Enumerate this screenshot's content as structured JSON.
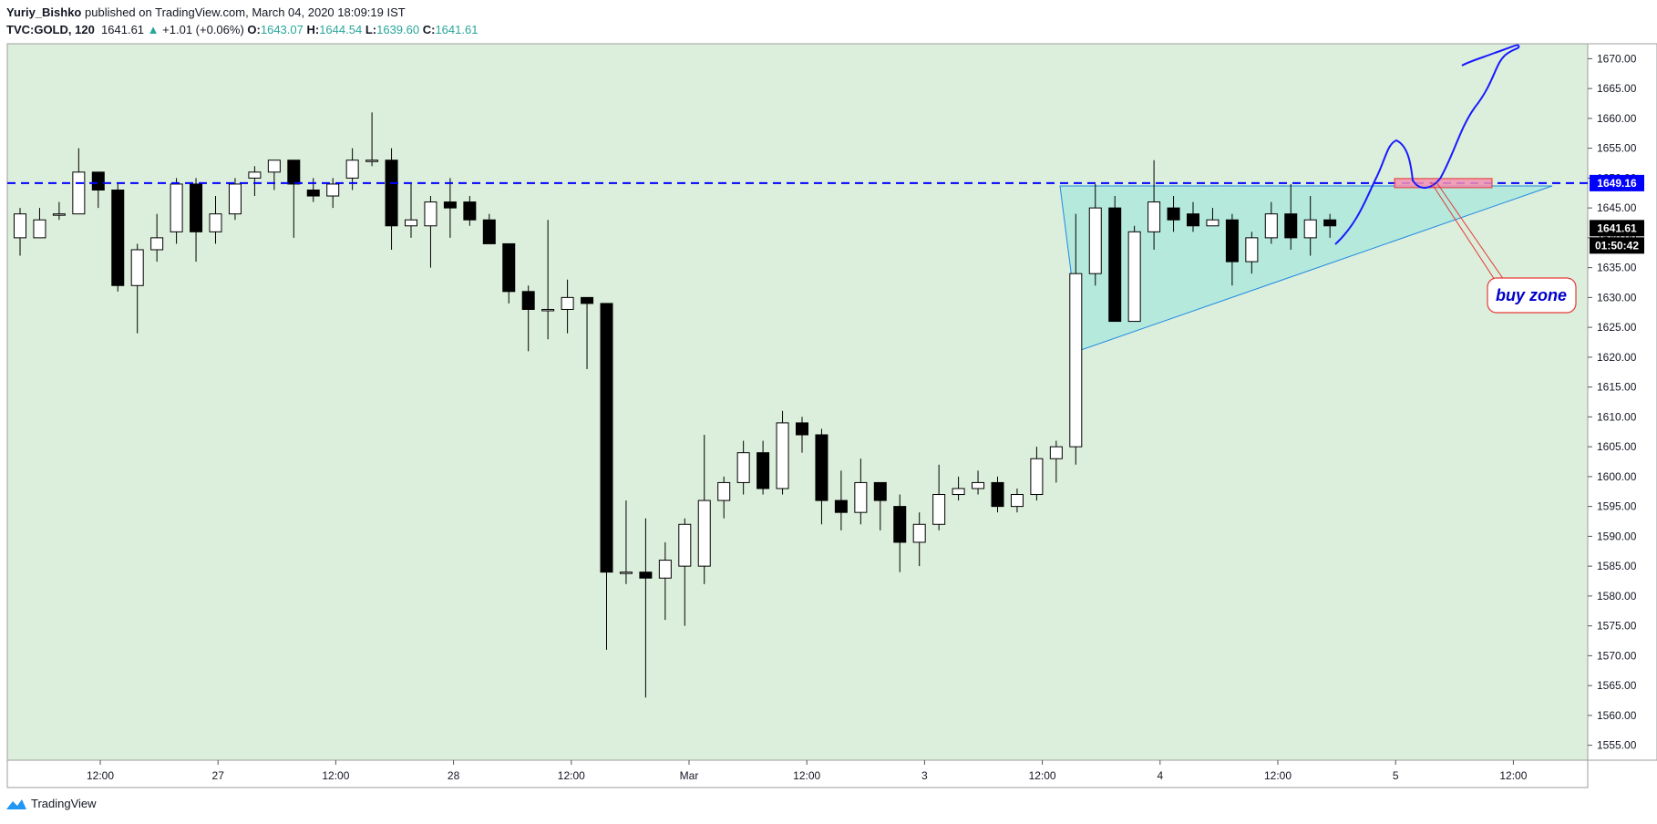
{
  "header": {
    "author": "Yuriy_Bishko",
    "published_text": "published on TradingView.com, March 04, 2020 18:09:19 IST",
    "symbol": "TVC:GOLD, 120",
    "last": "1641.61",
    "change": "+1.01 (+0.06%)",
    "o_label": "O:",
    "o": "1643.07",
    "h_label": "H:",
    "h": "1644.54",
    "l_label": "L:",
    "l": "1639.60",
    "c_label": "C:",
    "c": "1641.61"
  },
  "footer": {
    "brand": "TradingView"
  },
  "chart_data": {
    "type": "candlestick",
    "x_tick_labels": [
      "12:00",
      "27",
      "12:00",
      "28",
      "12:00",
      "Mar",
      "12:00",
      "3",
      "12:00",
      "4",
      "12:00",
      "5",
      "12:00"
    ],
    "y_ticks": [
      1555,
      1560,
      1565,
      1570,
      1575,
      1580,
      1585,
      1590,
      1595,
      1600,
      1605,
      1610,
      1615,
      1620,
      1625,
      1630,
      1635,
      1640,
      1645,
      1650,
      1655,
      1660,
      1665,
      1670
    ],
    "ylim": [
      1552.5,
      1672.5
    ],
    "horizontal_line": {
      "value": 1649.16,
      "label": "1649.16",
      "color": "#0000ff"
    },
    "last_price": {
      "value": 1641.61,
      "label": "1641.61"
    },
    "countdown": "01:50:42",
    "annotation": {
      "text": "buy zone",
      "color": "#0000cc",
      "border": "#e53935"
    },
    "candles": [
      {
        "o": 1640,
        "h": 1645,
        "l": 1637,
        "c": 1644
      },
      {
        "o": 1640,
        "h": 1645,
        "l": 1640,
        "c": 1643
      },
      {
        "o": 1644,
        "h": 1646,
        "l": 1643,
        "c": 1644
      },
      {
        "o": 1644,
        "h": 1655,
        "l": 1644,
        "c": 1651
      },
      {
        "o": 1651,
        "h": 1651,
        "l": 1645,
        "c": 1648
      },
      {
        "o": 1648,
        "h": 1649,
        "l": 1631,
        "c": 1632
      },
      {
        "o": 1632,
        "h": 1639,
        "l": 1624,
        "c": 1638
      },
      {
        "o": 1638,
        "h": 1644,
        "l": 1636,
        "c": 1640
      },
      {
        "o": 1641,
        "h": 1650,
        "l": 1639,
        "c": 1649
      },
      {
        "o": 1649,
        "h": 1650,
        "l": 1636,
        "c": 1641
      },
      {
        "o": 1641,
        "h": 1647,
        "l": 1639,
        "c": 1644
      },
      {
        "o": 1644,
        "h": 1650,
        "l": 1643,
        "c": 1649
      },
      {
        "o": 1650,
        "h": 1652,
        "l": 1647,
        "c": 1651
      },
      {
        "o": 1651,
        "h": 1653,
        "l": 1648,
        "c": 1653
      },
      {
        "o": 1653,
        "h": 1653,
        "l": 1640,
        "c": 1649
      },
      {
        "o": 1648,
        "h": 1650,
        "l": 1646,
        "c": 1647
      },
      {
        "o": 1647,
        "h": 1650,
        "l": 1645,
        "c": 1649
      },
      {
        "o": 1650,
        "h": 1655,
        "l": 1648,
        "c": 1653
      },
      {
        "o": 1653,
        "h": 1661,
        "l": 1652,
        "c": 1653
      },
      {
        "o": 1653,
        "h": 1655,
        "l": 1638,
        "c": 1642
      },
      {
        "o": 1642,
        "h": 1649,
        "l": 1640,
        "c": 1643
      },
      {
        "o": 1642,
        "h": 1647,
        "l": 1635,
        "c": 1646
      },
      {
        "o": 1646,
        "h": 1650,
        "l": 1640,
        "c": 1645
      },
      {
        "o": 1646,
        "h": 1647,
        "l": 1642,
        "c": 1643
      },
      {
        "o": 1643,
        "h": 1644,
        "l": 1639,
        "c": 1639
      },
      {
        "o": 1639,
        "h": 1639,
        "l": 1629,
        "c": 1631
      },
      {
        "o": 1631,
        "h": 1632,
        "l": 1621,
        "c": 1628
      },
      {
        "o": 1628,
        "h": 1643,
        "l": 1623,
        "c": 1628
      },
      {
        "o": 1628,
        "h": 1633,
        "l": 1624,
        "c": 1630
      },
      {
        "o": 1630,
        "h": 1630,
        "l": 1618,
        "c": 1629
      },
      {
        "o": 1629,
        "h": 1629,
        "l": 1571,
        "c": 1584
      },
      {
        "o": 1584,
        "h": 1596,
        "l": 1582,
        "c": 1584
      },
      {
        "o": 1584,
        "h": 1593,
        "l": 1563,
        "c": 1583
      },
      {
        "o": 1583,
        "h": 1589,
        "l": 1576,
        "c": 1586
      },
      {
        "o": 1585,
        "h": 1593,
        "l": 1575,
        "c": 1592
      },
      {
        "o": 1585,
        "h": 1607,
        "l": 1582,
        "c": 1596
      },
      {
        "o": 1596,
        "h": 1600,
        "l": 1593,
        "c": 1599
      },
      {
        "o": 1599,
        "h": 1606,
        "l": 1597,
        "c": 1604
      },
      {
        "o": 1604,
        "h": 1606,
        "l": 1597,
        "c": 1598
      },
      {
        "o": 1598,
        "h": 1611,
        "l": 1597,
        "c": 1609
      },
      {
        "o": 1609,
        "h": 1610,
        "l": 1604,
        "c": 1607
      },
      {
        "o": 1607,
        "h": 1608,
        "l": 1592,
        "c": 1596
      },
      {
        "o": 1596,
        "h": 1601,
        "l": 1591,
        "c": 1594
      },
      {
        "o": 1594,
        "h": 1603,
        "l": 1592,
        "c": 1599
      },
      {
        "o": 1599,
        "h": 1599,
        "l": 1591,
        "c": 1596
      },
      {
        "o": 1595,
        "h": 1597,
        "l": 1584,
        "c": 1589
      },
      {
        "o": 1589,
        "h": 1594,
        "l": 1585,
        "c": 1592
      },
      {
        "o": 1592,
        "h": 1602,
        "l": 1591,
        "c": 1597
      },
      {
        "o": 1597,
        "h": 1600,
        "l": 1596,
        "c": 1598
      },
      {
        "o": 1598,
        "h": 1601,
        "l": 1597,
        "c": 1599
      },
      {
        "o": 1599,
        "h": 1600,
        "l": 1594,
        "c": 1595
      },
      {
        "o": 1595,
        "h": 1598,
        "l": 1594,
        "c": 1597
      },
      {
        "o": 1597,
        "h": 1605,
        "l": 1596,
        "c": 1603
      },
      {
        "o": 1603,
        "h": 1606,
        "l": 1599,
        "c": 1605
      },
      {
        "o": 1605,
        "h": 1644,
        "l": 1602,
        "c": 1634
      },
      {
        "o": 1634,
        "h": 1649,
        "l": 1632,
        "c": 1645
      },
      {
        "o": 1645,
        "h": 1647,
        "l": 1626,
        "c": 1626
      },
      {
        "o": 1626,
        "h": 1642,
        "l": 1626,
        "c": 1641
      },
      {
        "o": 1641,
        "h": 1653,
        "l": 1638,
        "c": 1646
      },
      {
        "o": 1645,
        "h": 1647,
        "l": 1641,
        "c": 1643
      },
      {
        "o": 1644,
        "h": 1646,
        "l": 1641,
        "c": 1642
      },
      {
        "o": 1642,
        "h": 1645,
        "l": 1642,
        "c": 1643
      },
      {
        "o": 1643,
        "h": 1644,
        "l": 1632,
        "c": 1636
      },
      {
        "o": 1636,
        "h": 1641,
        "l": 1634,
        "c": 1640
      },
      {
        "o": 1640,
        "h": 1646,
        "l": 1639,
        "c": 1644
      },
      {
        "o": 1644,
        "h": 1649,
        "l": 1638,
        "c": 1640
      },
      {
        "o": 1640,
        "h": 1647,
        "l": 1637,
        "c": 1643
      },
      {
        "o": 1643,
        "h": 1644,
        "l": 1640,
        "c": 1642
      }
    ]
  }
}
